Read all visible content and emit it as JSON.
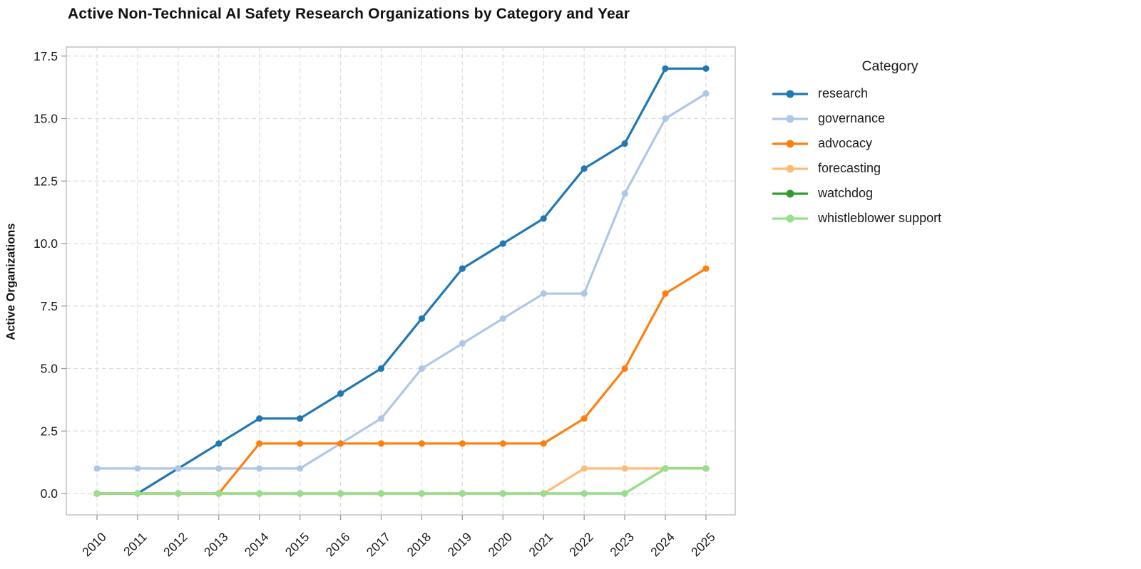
{
  "chart_data": {
    "type": "line",
    "title": "Active Non-Technical AI Safety Research Organizations by Category and Year",
    "xlabel": "",
    "ylabel": "Active Organizations",
    "x": [
      2010,
      2011,
      2012,
      2013,
      2014,
      2015,
      2016,
      2017,
      2018,
      2019,
      2020,
      2021,
      2022,
      2023,
      2024,
      2025
    ],
    "series": [
      {
        "name": "research",
        "color": "#1f77b4",
        "values": [
          0,
          0,
          1,
          2,
          3,
          3,
          4,
          5,
          7,
          9,
          10,
          11,
          13,
          14,
          17,
          17
        ]
      },
      {
        "name": "governance",
        "color": "#aec7e8",
        "values": [
          1,
          1,
          1,
          1,
          1,
          1,
          2,
          3,
          5,
          6,
          7,
          8,
          8,
          12,
          15,
          16
        ]
      },
      {
        "name": "advocacy",
        "color": "#ff7f0e",
        "values": [
          0,
          0,
          0,
          0,
          2,
          2,
          2,
          2,
          2,
          2,
          2,
          2,
          3,
          5,
          8,
          9
        ]
      },
      {
        "name": "forecasting",
        "color": "#ffbb78",
        "values": [
          0,
          0,
          0,
          0,
          0,
          0,
          0,
          0,
          0,
          0,
          0,
          0,
          1,
          1,
          1,
          1
        ]
      },
      {
        "name": "watchdog",
        "color": "#2ca02c",
        "values": [
          0,
          0,
          0,
          0,
          0,
          0,
          0,
          0,
          0,
          0,
          0,
          0,
          0,
          0,
          1,
          1
        ]
      },
      {
        "name": "whistleblower support",
        "color": "#98df8a",
        "values": [
          0,
          0,
          0,
          0,
          0,
          0,
          0,
          0,
          0,
          0,
          0,
          0,
          0,
          0,
          1,
          1
        ]
      }
    ],
    "yticks": [
      0.0,
      2.5,
      5.0,
      7.5,
      10.0,
      12.5,
      15.0,
      17.5
    ],
    "ytick_labels": [
      "0.0",
      "2.5",
      "5.0",
      "7.5",
      "10.0",
      "12.5",
      "15.0",
      "17.5"
    ],
    "ylim": [
      -0.9,
      17.9
    ],
    "grid": "dashed",
    "legend": {
      "title": "Category",
      "position": "right"
    }
  }
}
